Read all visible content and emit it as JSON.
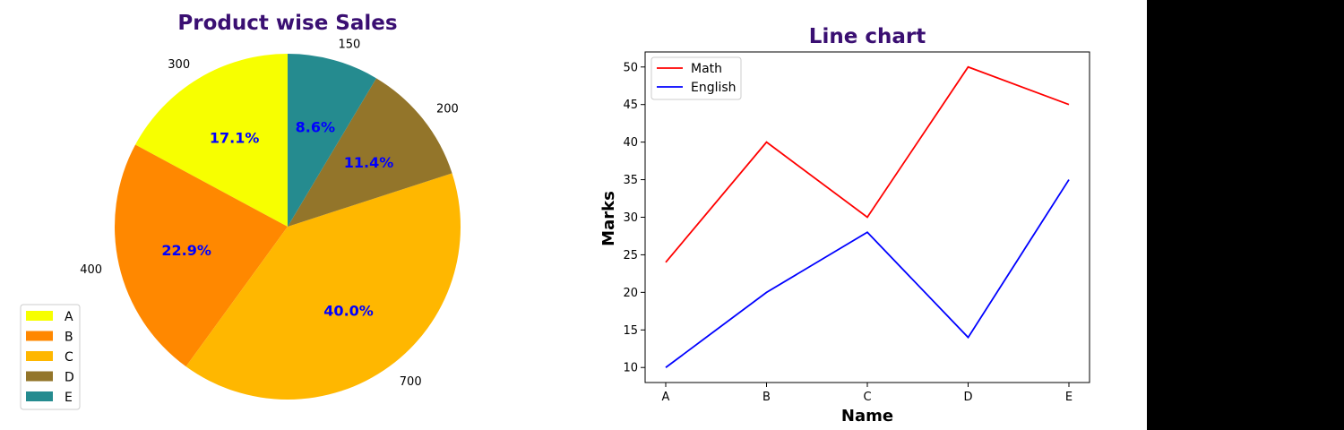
{
  "chart_data": [
    {
      "type": "pie",
      "title": "Product wise Sales",
      "labels": [
        "A",
        "B",
        "C",
        "D",
        "E"
      ],
      "values": [
        300,
        400,
        700,
        200,
        150
      ],
      "percent_labels": [
        "17.1%",
        "22.9%",
        "40.0%",
        "11.4%",
        "8.6%"
      ],
      "value_labels": [
        "300",
        "400",
        "700",
        "200",
        "150"
      ],
      "colors": [
        "#f7ff00",
        "#ff8800",
        "#ffb700",
        "#93752a",
        "#258b8f"
      ],
      "start_angle_deg": 90,
      "direction": "counterclockwise",
      "legend": "lower-left",
      "legend_entries": [
        "A",
        "B",
        "C",
        "D",
        "E"
      ],
      "title_color": "#3a0f72",
      "pct_color": "#0000ff"
    },
    {
      "type": "line",
      "title": "Line chart",
      "categories": [
        "A",
        "B",
        "C",
        "D",
        "E"
      ],
      "series": [
        {
          "name": "Math",
          "values": [
            24,
            40,
            30,
            50,
            45
          ],
          "color": "#ff0000"
        },
        {
          "name": "English",
          "values": [
            10,
            20,
            28,
            14,
            35
          ],
          "color": "#0000ff"
        }
      ],
      "xlabel": "Name",
      "ylabel": "Marks",
      "y_ticks": [
        "10",
        "15",
        "20",
        "25",
        "30",
        "35",
        "40",
        "45",
        "50"
      ],
      "ylim": [
        8,
        52
      ],
      "legend": "top-left",
      "grid": false,
      "title_color": "#3a0f72"
    }
  ]
}
